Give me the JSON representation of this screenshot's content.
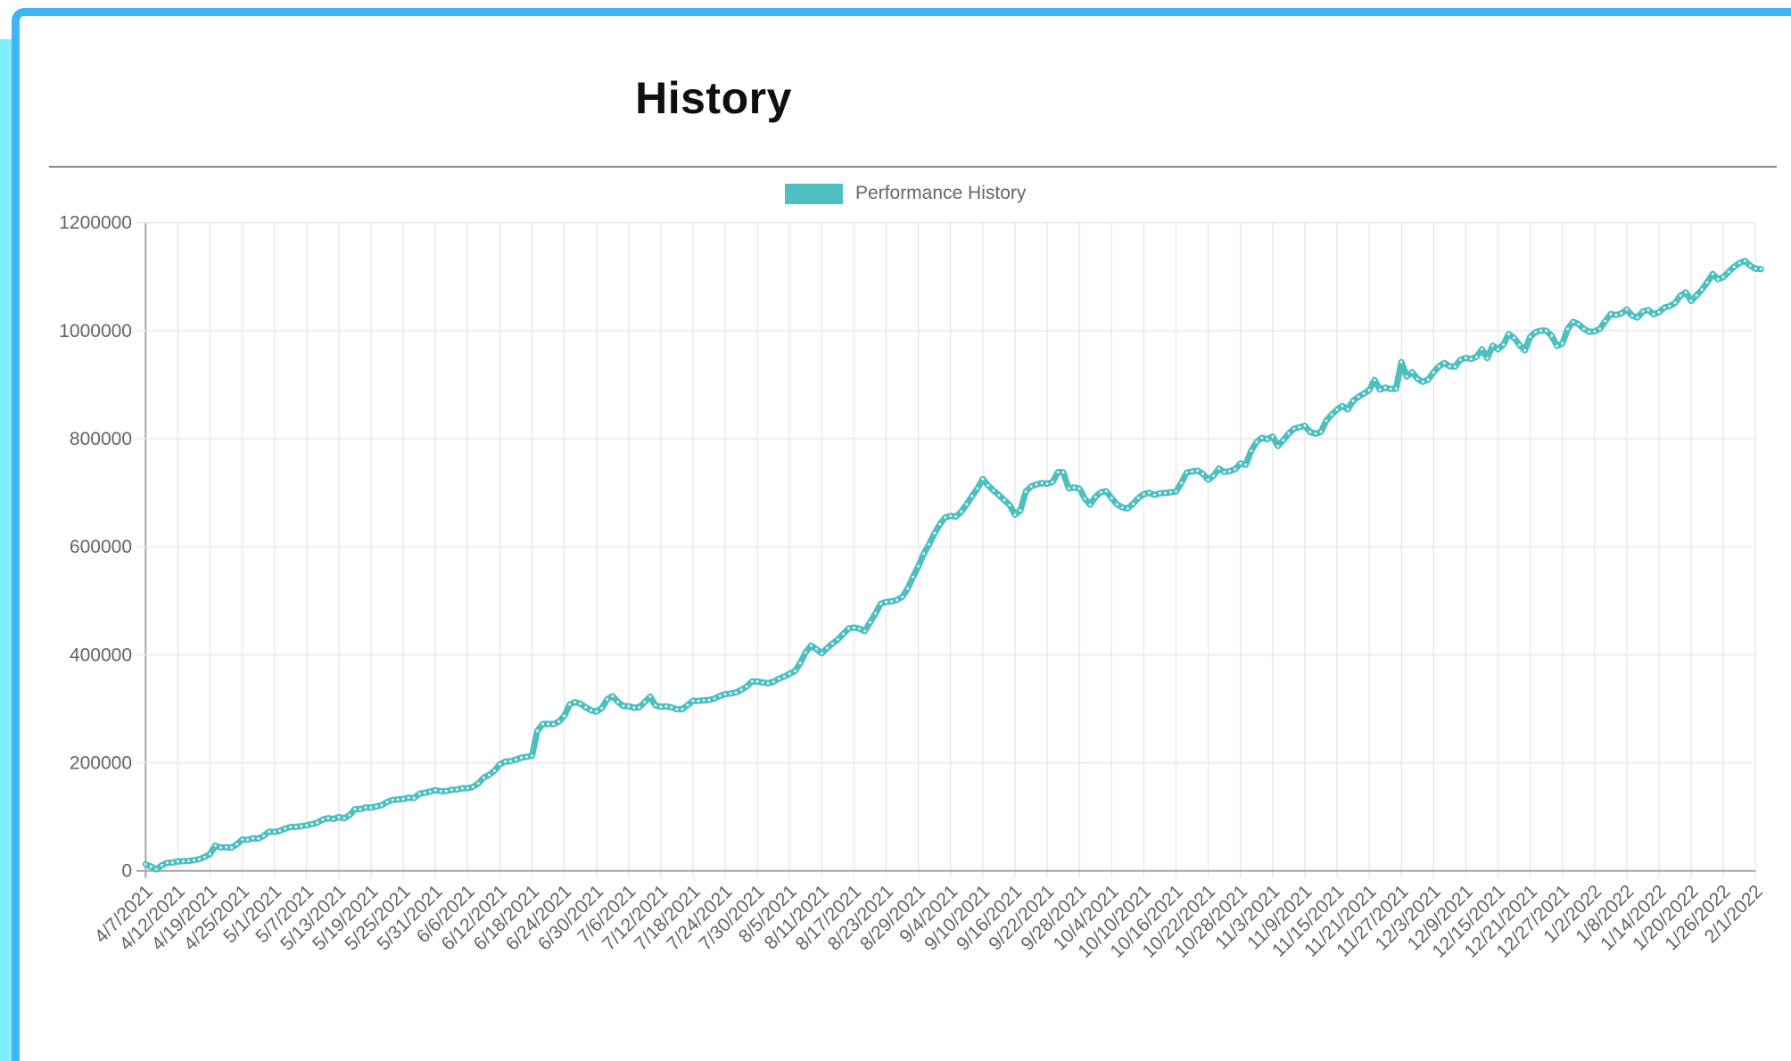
{
  "header": {
    "title": "History"
  },
  "legend": {
    "label": "Performance History"
  },
  "colors": {
    "accent": "#4dbfc1",
    "frame_blue": "#41b4f4",
    "accent_strip_cyan": "#7deefe",
    "grid": "#e8e8e8",
    "axis": "#a6a6a6",
    "tick_text": "#606468",
    "title_text": "#0f0f0f",
    "divider": "#858585",
    "point_dot": "#ffffff"
  },
  "chart_data": {
    "type": "line",
    "title": "History",
    "series_name": "Performance History",
    "legend_position": "top",
    "grid": true,
    "ylim": [
      0,
      1200000
    ],
    "y_ticks": [
      0,
      200000,
      400000,
      600000,
      800000,
      1000000,
      1200000
    ],
    "x_tick_labels": [
      "4/7/2021",
      "4/12/2021",
      "4/19/2021",
      "4/25/2021",
      "5/1/2021",
      "5/7/2021",
      "5/13/2021",
      "5/19/2021",
      "5/25/2021",
      "5/31/2021",
      "6/6/2021",
      "6/12/2021",
      "6/18/2021",
      "6/24/2021",
      "6/30/2021",
      "7/6/2021",
      "7/12/2021",
      "7/18/2021",
      "7/24/2021",
      "7/30/2021",
      "8/5/2021",
      "8/11/2021",
      "8/17/2021",
      "8/23/2021",
      "8/29/2021",
      "9/4/2021",
      "9/10/2021",
      "9/16/2021",
      "9/22/2021",
      "9/28/2021",
      "10/4/2021",
      "10/10/2021",
      "10/16/2021",
      "10/22/2021",
      "10/28/2021",
      "11/3/2021",
      "11/9/2021",
      "11/15/2021",
      "11/21/2021",
      "11/27/2021",
      "12/3/2021",
      "12/9/2021",
      "12/15/2021",
      "12/21/2021",
      "12/27/2021",
      "1/2/2022",
      "1/8/2022",
      "1/14/2022",
      "1/20/2022",
      "1/26/2022",
      "2/1/2022"
    ],
    "points_per_tick": 6,
    "points_tick_units": "x values below are fractional indices into x_tick_labels (ticks are 6 days apart); y values read from gridlines",
    "points": [
      [
        0,
        12000
      ],
      [
        0.15,
        10000
      ],
      [
        0.35,
        1000
      ],
      [
        0.55,
        13000
      ],
      [
        0.8,
        15000
      ],
      [
        1.0,
        16000
      ],
      [
        1.3,
        17000
      ],
      [
        1.6,
        19000
      ],
      [
        1.8,
        24000
      ],
      [
        2.0,
        32000
      ],
      [
        2.15,
        45000
      ],
      [
        2.25,
        47000
      ],
      [
        2.4,
        42000
      ],
      [
        2.6,
        43000
      ],
      [
        2.75,
        45000
      ],
      [
        2.9,
        55000
      ],
      [
        3.1,
        58000
      ],
      [
        3.4,
        60000
      ],
      [
        3.6,
        62000
      ],
      [
        3.8,
        71000
      ],
      [
        4.0,
        73000
      ],
      [
        4.2,
        74000
      ],
      [
        4.45,
        81000
      ],
      [
        4.7,
        83000
      ],
      [
        5.0,
        85000
      ],
      [
        5.2,
        86000
      ],
      [
        5.45,
        95000
      ],
      [
        5.7,
        97000
      ],
      [
        6.0,
        98000
      ],
      [
        6.25,
        99000
      ],
      [
        6.5,
        113000
      ],
      [
        6.8,
        117000
      ],
      [
        7.1,
        118000
      ],
      [
        7.35,
        122000
      ],
      [
        7.6,
        130000
      ],
      [
        7.9,
        133000
      ],
      [
        8.1,
        135000
      ],
      [
        8.35,
        136000
      ],
      [
        8.55,
        145000
      ],
      [
        8.8,
        147000
      ],
      [
        9.1,
        148000
      ],
      [
        9.5,
        150000
      ],
      [
        9.9,
        152000
      ],
      [
        10.2,
        155000
      ],
      [
        10.45,
        170000
      ],
      [
        10.7,
        178000
      ],
      [
        10.9,
        188000
      ],
      [
        11.05,
        200000
      ],
      [
        11.25,
        203000
      ],
      [
        11.5,
        206000
      ],
      [
        11.8,
        210000
      ],
      [
        12.0,
        212000
      ],
      [
        12.1,
        240000
      ],
      [
        12.2,
        271000
      ],
      [
        12.4,
        274000
      ],
      [
        12.55,
        270000
      ],
      [
        12.75,
        274000
      ],
      [
        12.95,
        278000
      ],
      [
        13.1,
        300000
      ],
      [
        13.25,
        315000
      ],
      [
        13.45,
        310000
      ],
      [
        13.65,
        302000
      ],
      [
        13.85,
        295000
      ],
      [
        14.1,
        297000
      ],
      [
        14.35,
        318000
      ],
      [
        14.5,
        322000
      ],
      [
        14.7,
        310000
      ],
      [
        14.9,
        305000
      ],
      [
        15.15,
        302000
      ],
      [
        15.4,
        304000
      ],
      [
        15.65,
        323000
      ],
      [
        15.8,
        306000
      ],
      [
        16.1,
        304000
      ],
      [
        16.4,
        302000
      ],
      [
        16.65,
        297000
      ],
      [
        16.9,
        312000
      ],
      [
        17.1,
        316000
      ],
      [
        17.4,
        315000
      ],
      [
        17.65,
        319000
      ],
      [
        17.85,
        325000
      ],
      [
        18.1,
        327000
      ],
      [
        18.35,
        331000
      ],
      [
        18.6,
        340000
      ],
      [
        18.85,
        350000
      ],
      [
        19.05,
        352000
      ],
      [
        19.25,
        346000
      ],
      [
        19.5,
        350000
      ],
      [
        19.7,
        358000
      ],
      [
        19.95,
        362000
      ],
      [
        20.15,
        370000
      ],
      [
        20.35,
        385000
      ],
      [
        20.6,
        420000
      ],
      [
        20.8,
        412000
      ],
      [
        21.0,
        403000
      ],
      [
        21.3,
        418000
      ],
      [
        21.6,
        434000
      ],
      [
        21.85,
        448000
      ],
      [
        22.1,
        452000
      ],
      [
        22.35,
        442000
      ],
      [
        22.6,
        470000
      ],
      [
        22.85,
        497000
      ],
      [
        23.1,
        500000
      ],
      [
        23.45,
        502000
      ],
      [
        23.6,
        515000
      ],
      [
        23.8,
        540000
      ],
      [
        24.0,
        565000
      ],
      [
        24.2,
        590000
      ],
      [
        24.45,
        620000
      ],
      [
        24.7,
        645000
      ],
      [
        24.9,
        660000
      ],
      [
        25.1,
        655000
      ],
      [
        25.25,
        658000
      ],
      [
        25.5,
        680000
      ],
      [
        25.75,
        700000
      ],
      [
        26.0,
        726000
      ],
      [
        26.2,
        710000
      ],
      [
        26.5,
        697000
      ],
      [
        26.8,
        680000
      ],
      [
        27.0,
        660000
      ],
      [
        27.1,
        650000
      ],
      [
        27.3,
        700000
      ],
      [
        27.5,
        713000
      ],
      [
        27.75,
        718000
      ],
      [
        27.9,
        720000
      ],
      [
        28.1,
        712000
      ],
      [
        28.25,
        730000
      ],
      [
        28.45,
        748000
      ],
      [
        28.6,
        718000
      ],
      [
        28.75,
        697000
      ],
      [
        28.9,
        720000
      ],
      [
        29.1,
        694000
      ],
      [
        29.35,
        678000
      ],
      [
        29.6,
        700000
      ],
      [
        29.8,
        704000
      ],
      [
        30.0,
        690000
      ],
      [
        30.2,
        678000
      ],
      [
        30.5,
        670000
      ],
      [
        30.8,
        688000
      ],
      [
        31.1,
        702000
      ],
      [
        31.35,
        696000
      ],
      [
        31.6,
        699000
      ],
      [
        31.9,
        701000
      ],
      [
        32.1,
        703000
      ],
      [
        32.25,
        735000
      ],
      [
        32.5,
        738000
      ],
      [
        32.75,
        742000
      ],
      [
        32.95,
        726000
      ],
      [
        33.1,
        723000
      ],
      [
        33.3,
        746000
      ],
      [
        33.5,
        738000
      ],
      [
        33.75,
        740000
      ],
      [
        34.0,
        753000
      ],
      [
        34.1,
        742000
      ],
      [
        34.35,
        780000
      ],
      [
        34.6,
        802000
      ],
      [
        34.8,
        797000
      ],
      [
        35.0,
        803000
      ],
      [
        35.15,
        786000
      ],
      [
        35.35,
        800000
      ],
      [
        35.55,
        814000
      ],
      [
        35.8,
        822000
      ],
      [
        36.0,
        825000
      ],
      [
        36.2,
        810000
      ],
      [
        36.45,
        808000
      ],
      [
        36.7,
        836000
      ],
      [
        36.95,
        850000
      ],
      [
        37.15,
        863000
      ],
      [
        37.3,
        853000
      ],
      [
        37.5,
        870000
      ],
      [
        37.75,
        880000
      ],
      [
        38.0,
        891000
      ],
      [
        38.15,
        912000
      ],
      [
        38.35,
        888000
      ],
      [
        38.6,
        897000
      ],
      [
        38.8,
        883000
      ],
      [
        39.0,
        942000
      ],
      [
        39.15,
        916000
      ],
      [
        39.35,
        924000
      ],
      [
        39.6,
        903000
      ],
      [
        39.85,
        910000
      ],
      [
        40.1,
        930000
      ],
      [
        40.3,
        941000
      ],
      [
        40.6,
        930000
      ],
      [
        40.9,
        949000
      ],
      [
        41.1,
        952000
      ],
      [
        41.25,
        940000
      ],
      [
        41.45,
        971000
      ],
      [
        41.65,
        946000
      ],
      [
        41.85,
        975000
      ],
      [
        42.05,
        960000
      ],
      [
        42.2,
        980000
      ],
      [
        42.35,
        997000
      ],
      [
        42.6,
        980000
      ],
      [
        42.8,
        960000
      ],
      [
        43.05,
        996000
      ],
      [
        43.3,
        1001000
      ],
      [
        43.6,
        1001000
      ],
      [
        43.8,
        971000
      ],
      [
        44.0,
        976000
      ],
      [
        44.2,
        1008000
      ],
      [
        44.4,
        1020000
      ],
      [
        44.65,
        1004000
      ],
      [
        44.9,
        995000
      ],
      [
        45.2,
        1004000
      ],
      [
        45.45,
        1027000
      ],
      [
        45.6,
        1034000
      ],
      [
        45.75,
        1026000
      ],
      [
        46.0,
        1039000
      ],
      [
        46.25,
        1020000
      ],
      [
        46.6,
        1040000
      ],
      [
        46.85,
        1031000
      ],
      [
        47.05,
        1037000
      ],
      [
        47.25,
        1044000
      ],
      [
        47.5,
        1052000
      ],
      [
        47.8,
        1074000
      ],
      [
        48.0,
        1056000
      ],
      [
        48.2,
        1066000
      ],
      [
        48.45,
        1084000
      ],
      [
        48.65,
        1105000
      ],
      [
        48.85,
        1095000
      ],
      [
        49.1,
        1104000
      ],
      [
        49.3,
        1117000
      ],
      [
        49.6,
        1131000
      ],
      [
        49.85,
        1120000
      ],
      [
        50.0,
        1114000
      ],
      [
        50.25,
        1112000
      ]
    ]
  }
}
